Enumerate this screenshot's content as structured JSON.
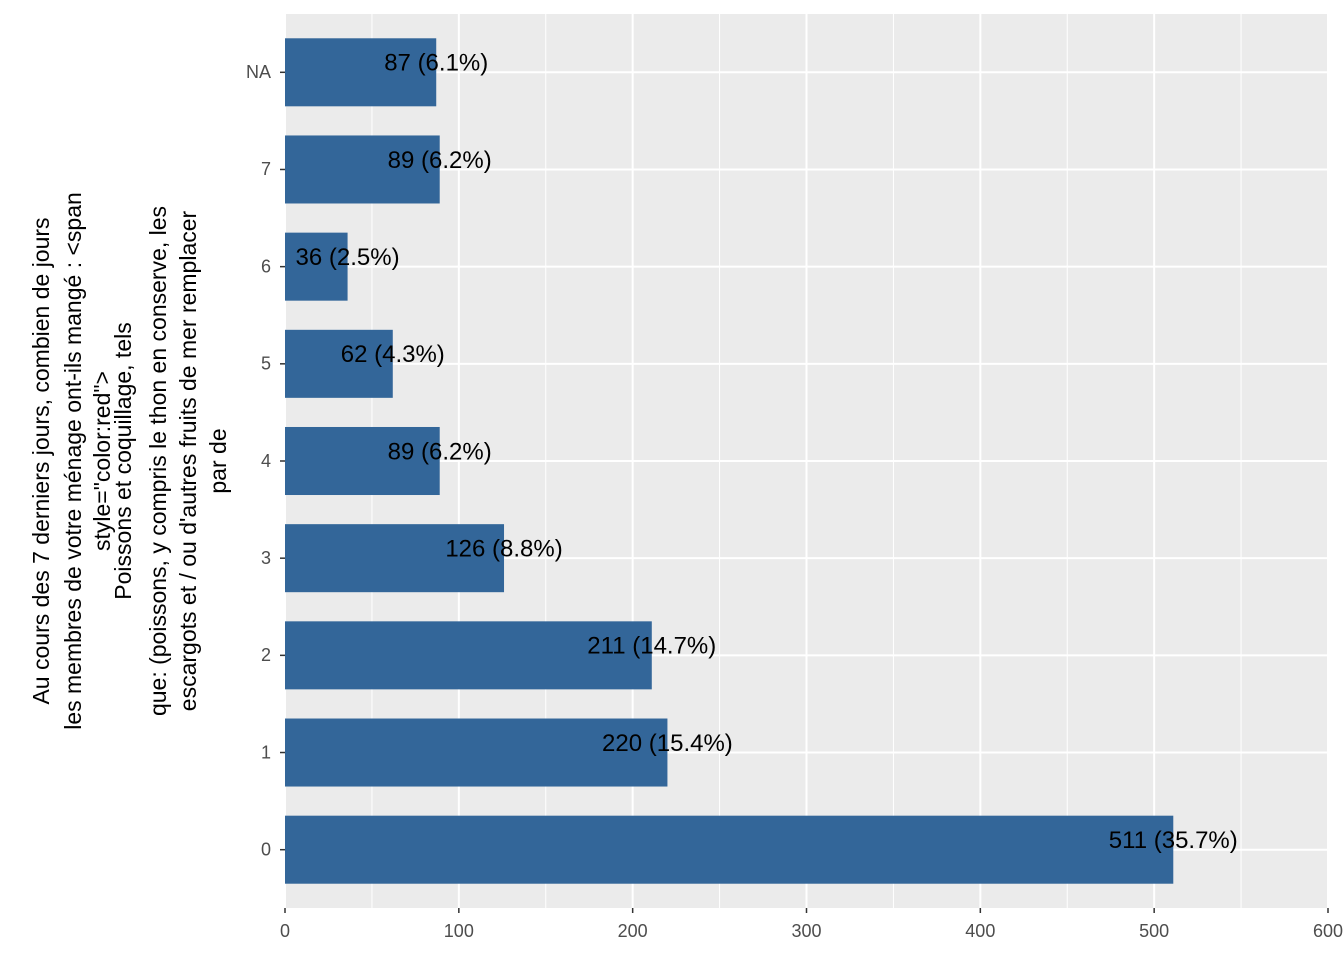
{
  "chart_data": {
    "type": "barh",
    "y_label_lines": [
      "Au cours des 7 derniers jours, combien de jours",
      "les membres de votre ménage ont-ils mangé : <span",
      "style=\"color:red\">",
      "Poissons et coquillage, tels",
      "que: (poissons, y compris le thon en conserve, les",
      "escargots et / ou d'autres fruits de mer remplacer",
      "par de"
    ],
    "categories": [
      "0",
      "1",
      "2",
      "3",
      "4",
      "5",
      "6",
      "7",
      "NA"
    ],
    "values": [
      511,
      220,
      211,
      126,
      89,
      62,
      36,
      89,
      87
    ],
    "value_labels": [
      "511 (35.7%)",
      "220 (15.4%)",
      "211 (14.7%)",
      "126 (8.8%)",
      "89 (6.2%)",
      "62 (4.3%)",
      "36 (2.5%)",
      "89 (6.2%)",
      "87 (6.1%)"
    ],
    "color": "#336699",
    "xlim": [
      0,
      600
    ],
    "xticks": [
      0,
      100,
      200,
      300,
      400,
      500,
      600
    ],
    "grid": true
  }
}
